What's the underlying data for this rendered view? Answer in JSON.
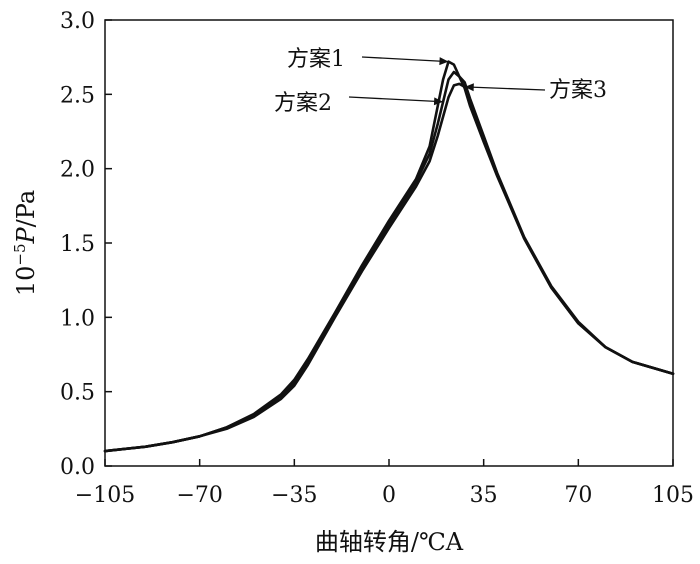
{
  "chart_data": {
    "type": "line",
    "xlabel": "曲轴转角/℃A",
    "ylabel": {
      "prefix": "10",
      "exponent": "−5",
      "variable": "P",
      "unit": "/Pa"
    },
    "xlim": [
      -105,
      105
    ],
    "ylim": [
      0.0,
      3.0
    ],
    "xticks": [
      -105,
      -70,
      -35,
      0,
      35,
      70,
      105
    ],
    "xtick_labels": [
      "−105",
      "−70",
      "−35",
      "0",
      "35",
      "70",
      "105"
    ],
    "yticks": [
      0.0,
      0.5,
      1.0,
      1.5,
      2.0,
      2.5,
      3.0
    ],
    "ytick_labels": [
      "0.0",
      "0.5",
      "1.0",
      "1.5",
      "2.0",
      "2.5",
      "3.0"
    ],
    "grid": false,
    "legend": "annotations",
    "line_color": "#111111",
    "series": [
      {
        "name": "方案1",
        "x": [
          -105,
          -90,
          -80,
          -70,
          -60,
          -50,
          -40,
          -35,
          -30,
          -20,
          -10,
          0,
          10,
          15,
          18,
          20,
          22,
          24,
          26,
          28,
          30,
          35,
          40,
          50,
          60,
          70,
          80,
          90,
          105
        ],
        "y": [
          0.1,
          0.13,
          0.16,
          0.2,
          0.26,
          0.35,
          0.48,
          0.58,
          0.72,
          1.03,
          1.35,
          1.65,
          1.93,
          2.15,
          2.42,
          2.6,
          2.72,
          2.7,
          2.62,
          2.54,
          2.42,
          2.18,
          1.95,
          1.53,
          1.2,
          0.96,
          0.8,
          0.7,
          0.62
        ]
      },
      {
        "name": "方案2",
        "x": [
          -105,
          -90,
          -80,
          -70,
          -60,
          -50,
          -40,
          -35,
          -30,
          -20,
          -10,
          0,
          10,
          15,
          18,
          20,
          22,
          24,
          26,
          28,
          30,
          35,
          40,
          50,
          60,
          70,
          80,
          90,
          105
        ],
        "y": [
          0.1,
          0.13,
          0.16,
          0.2,
          0.26,
          0.34,
          0.47,
          0.56,
          0.7,
          1.02,
          1.33,
          1.63,
          1.91,
          2.1,
          2.3,
          2.45,
          2.6,
          2.65,
          2.62,
          2.58,
          2.47,
          2.22,
          1.97,
          1.54,
          1.21,
          0.97,
          0.8,
          0.7,
          0.62
        ]
      },
      {
        "name": "方案3",
        "x": [
          -105,
          -90,
          -80,
          -70,
          -60,
          -50,
          -40,
          -35,
          -30,
          -20,
          -10,
          0,
          10,
          15,
          18,
          20,
          22,
          24,
          26,
          28,
          30,
          35,
          40,
          50,
          60,
          70,
          80,
          90,
          105
        ],
        "y": [
          0.1,
          0.13,
          0.16,
          0.2,
          0.25,
          0.33,
          0.45,
          0.54,
          0.68,
          1.0,
          1.31,
          1.6,
          1.88,
          2.05,
          2.22,
          2.35,
          2.48,
          2.56,
          2.57,
          2.55,
          2.46,
          2.2,
          1.96,
          1.53,
          1.2,
          0.96,
          0.8,
          0.7,
          0.62
        ]
      }
    ],
    "annotations": [
      {
        "text": "方案1",
        "series": "方案1",
        "point_x": 22,
        "point_y": 2.72
      },
      {
        "text": "方案2",
        "series": "方案2",
        "point_x": 20,
        "point_y": 2.45
      },
      {
        "text": "方案3",
        "series": "方案3",
        "point_x": 28,
        "point_y": 2.55
      }
    ]
  }
}
